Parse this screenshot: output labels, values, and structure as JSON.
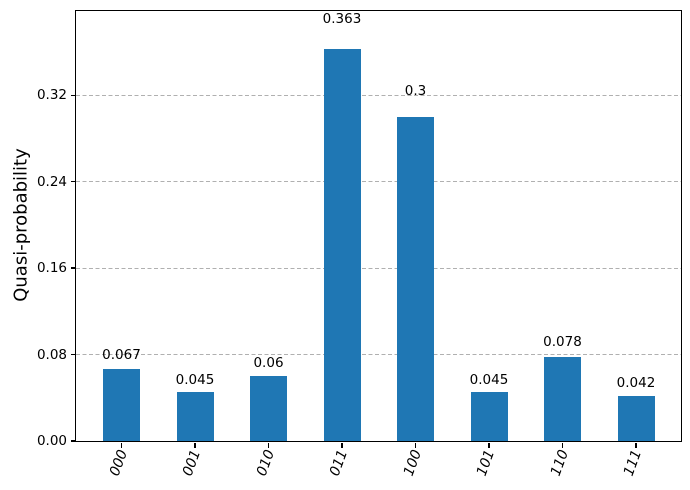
{
  "chart_data": {
    "type": "bar",
    "title": "",
    "xlabel": "",
    "ylabel": "Quasi-probability",
    "categories": [
      "000",
      "001",
      "010",
      "011",
      "100",
      "101",
      "110",
      "111"
    ],
    "values": [
      0.067,
      0.045,
      0.06,
      0.363,
      0.3,
      0.045,
      0.078,
      0.042
    ],
    "bar_value_labels": [
      "0.067",
      "0.045",
      "0.06",
      "0.363",
      "0.3",
      "0.045",
      "0.078",
      "0.042"
    ],
    "yticks": {
      "values": [
        0,
        0.08,
        0.16,
        0.24,
        0.32
      ],
      "labels": [
        "0.00",
        "0.08",
        "0.16",
        "0.24",
        "0.32"
      ]
    },
    "ylim": [
      0,
      0.398
    ],
    "grid": {
      "horizontal": true,
      "style": "dashed",
      "color": "#b0b0b0"
    },
    "bar_color": "#1f77b4",
    "x_tick_label_rotation_deg": 70,
    "legend": "none"
  }
}
